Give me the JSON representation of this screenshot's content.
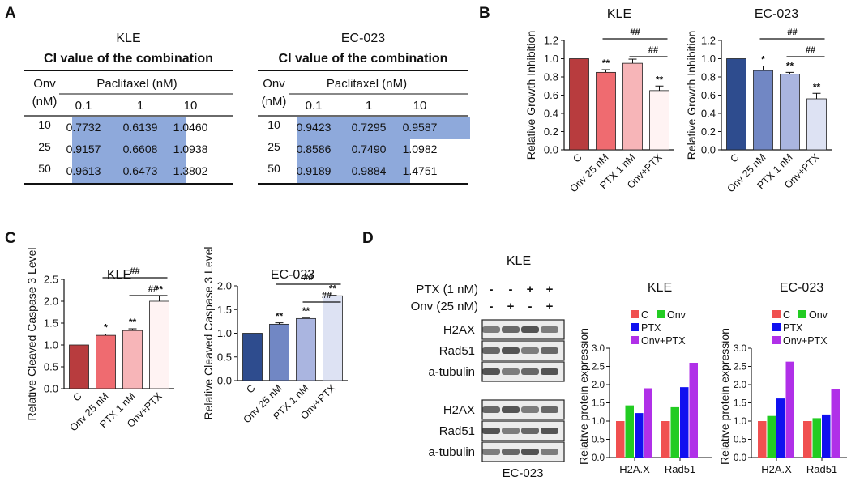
{
  "panel_labels": {
    "a": "A",
    "b": "B",
    "c": "C",
    "d": "D"
  },
  "panel_a": {
    "tables": [
      {
        "cell_line": "KLE",
        "caption": "CI value of the combination",
        "onv_header": [
          "Onv",
          "(nM)"
        ],
        "ptx_header": "Paclitaxel (nM)",
        "columns": [
          "0.1",
          "1",
          "10"
        ],
        "rows": [
          {
            "onv": "10",
            "values": [
              "0.7732",
              "0.6139",
              "1.0460"
            ]
          },
          {
            "onv": "25",
            "values": [
              "0.9157",
              "0.6608",
              "1.0938"
            ]
          },
          {
            "onv": "50",
            "values": [
              "0.9613",
              "0.6473",
              "1.3802"
            ]
          }
        ],
        "highlight_cells": [
          [
            0,
            0
          ],
          [
            0,
            1
          ],
          [
            1,
            0
          ],
          [
            1,
            1
          ],
          [
            2,
            0
          ],
          [
            2,
            1
          ]
        ]
      },
      {
        "cell_line": "EC-023",
        "caption": "CI value of the combination",
        "onv_header": [
          "Onv",
          "(nM)"
        ],
        "ptx_header": "Paclitaxel (nM)",
        "columns": [
          "0.1",
          "1",
          "10"
        ],
        "rows": [
          {
            "onv": "10",
            "values": [
              "0.9423",
              "0.7295",
              "0.9587"
            ]
          },
          {
            "onv": "25",
            "values": [
              "0.8586",
              "0.7490",
              "1.0982"
            ]
          },
          {
            "onv": "50",
            "values": [
              "0.9189",
              "0.9884",
              "1.4751"
            ]
          }
        ],
        "highlight_cells": [
          [
            0,
            0
          ],
          [
            0,
            1
          ],
          [
            0,
            2
          ],
          [
            1,
            0
          ],
          [
            1,
            1
          ],
          [
            2,
            0
          ],
          [
            2,
            1
          ]
        ]
      }
    ],
    "highlight_color": "#8ea9db"
  },
  "chart_data": [
    {
      "id": "b-kle",
      "type": "bar",
      "title": "KLE",
      "ylabel": "Relative Growth Inhibition",
      "xlabel": "",
      "categories": [
        "C",
        "Onv 25 nM",
        "PTX 1 nM",
        "Onv+PTX"
      ],
      "values": [
        1.0,
        0.85,
        0.95,
        0.65
      ],
      "errors": [
        0,
        0.03,
        0.045,
        0.05
      ],
      "sig": [
        "",
        "**",
        "",
        "**"
      ],
      "ylim": [
        0,
        1.2
      ],
      "ticks": [
        "0.0",
        "0.2",
        "0.4",
        "0.6",
        "0.8",
        "1.0",
        "1.2"
      ],
      "colors": [
        "#b83c3e",
        "#ef6b70",
        "#f7b5b8",
        "#fff3f3"
      ],
      "brackets": [
        {
          "from": 1,
          "to": 3,
          "label": "##"
        },
        {
          "from": 2,
          "to": 3,
          "label": "##"
        }
      ]
    },
    {
      "id": "b-ec",
      "type": "bar",
      "title": "EC-023",
      "ylabel": "Relative Growth Inhibition",
      "xlabel": "",
      "categories": [
        "C",
        "Onv 25 nM",
        "PTX 1 nM",
        "Onv+PTX"
      ],
      "values": [
        1.0,
        0.87,
        0.83,
        0.56
      ],
      "errors": [
        0,
        0.05,
        0.02,
        0.06
      ],
      "sig": [
        "",
        "*",
        "**",
        "**"
      ],
      "ylim": [
        0,
        1.2
      ],
      "ticks": [
        "0.0",
        "0.2",
        "0.4",
        "0.6",
        "0.8",
        "1.0",
        "1.2"
      ],
      "colors": [
        "#2e4c8e",
        "#7187c4",
        "#aab5e0",
        "#dde2f3"
      ],
      "brackets": [
        {
          "from": 1,
          "to": 3,
          "label": "##"
        },
        {
          "from": 2,
          "to": 3,
          "label": "##"
        }
      ]
    },
    {
      "id": "c-kle",
      "type": "bar",
      "title": "KLE",
      "ylabel": "Relative Cleaved Caspase 3 Level",
      "xlabel": "",
      "categories": [
        "C",
        "Onv 25 nM",
        "PTX 1 nM",
        "Onv+PTX"
      ],
      "values": [
        1.0,
        1.22,
        1.33,
        2.0
      ],
      "errors": [
        0,
        0.03,
        0.04,
        0.12
      ],
      "sig": [
        "",
        "*",
        "**",
        "**"
      ],
      "ylim": [
        0,
        2.5
      ],
      "ticks": [
        "0.0",
        "0.5",
        "1.0",
        "1.5",
        "2.0",
        "2.5"
      ],
      "colors": [
        "#b83c3e",
        "#ef6b70",
        "#f7b5b8",
        "#fff3f3"
      ],
      "brackets": [
        {
          "from": 1,
          "to": 3,
          "label": "##"
        },
        {
          "from": 2,
          "to": 3,
          "label": "##"
        }
      ]
    },
    {
      "id": "c-ec",
      "type": "bar",
      "title": "EC-023",
      "ylabel": "Relative Cleaved Caspase 3 Level",
      "xlabel": "",
      "categories": [
        "C",
        "Onv 25 nM",
        "PTX 1 nM",
        "Onv+PTX"
      ],
      "values": [
        1.0,
        1.19,
        1.31,
        1.79
      ],
      "errors": [
        0,
        0.03,
        0.02,
        0.01
      ],
      "sig": [
        "",
        "**",
        "**",
        "**"
      ],
      "ylim": [
        0,
        2.0
      ],
      "ticks": [
        "0.0",
        "0.5",
        "1.0",
        "1.5",
        "2.0"
      ],
      "colors": [
        "#2e4c8e",
        "#7187c4",
        "#aab5e0",
        "#dde2f3"
      ],
      "brackets": [
        {
          "from": 1,
          "to": 3,
          "label": "##"
        },
        {
          "from": 2,
          "to": 3,
          "label": "##"
        }
      ]
    },
    {
      "id": "d-kle",
      "type": "bar",
      "title": "KLE",
      "ylabel": "Relative protein expression",
      "xlabel": "",
      "groups": [
        "H2A.X",
        "Rad51"
      ],
      "series": [
        {
          "name": "C",
          "color": "#f05050",
          "values": [
            1.0,
            1.0
          ]
        },
        {
          "name": "Onv",
          "color": "#22cc22",
          "values": [
            1.43,
            1.38
          ]
        },
        {
          "name": "PTX",
          "color": "#1010f0",
          "values": [
            1.22,
            1.93
          ]
        },
        {
          "name": "Onv+PTX",
          "color": "#b030e8",
          "values": [
            1.9,
            2.6
          ]
        }
      ],
      "ylim": [
        0,
        3.0
      ],
      "ticks": [
        "0.0",
        "0.5",
        "1.0",
        "1.5",
        "2.0",
        "2.5",
        "3.0"
      ]
    },
    {
      "id": "d-ec",
      "type": "bar",
      "title": "EC-023",
      "ylabel": "Relative protein expression",
      "xlabel": "",
      "groups": [
        "H2A.X",
        "Rad51"
      ],
      "series": [
        {
          "name": "C",
          "color": "#f05050",
          "values": [
            1.0,
            1.0
          ]
        },
        {
          "name": "Onv",
          "color": "#22cc22",
          "values": [
            1.14,
            1.08
          ]
        },
        {
          "name": "PTX",
          "color": "#1010f0",
          "values": [
            1.62,
            1.18
          ]
        },
        {
          "name": "Onv+PTX",
          "color": "#b030e8",
          "values": [
            2.63,
            1.88
          ]
        }
      ],
      "ylim": [
        0,
        3.0
      ],
      "ticks": [
        "0.0",
        "0.5",
        "1.0",
        "1.5",
        "2.0",
        "2.5",
        "3.0"
      ]
    }
  ],
  "western": {
    "title": "KLE",
    "treatments": [
      {
        "label": "PTX (1 nM)",
        "signs": [
          "-",
          "-",
          "+",
          "+"
        ]
      },
      {
        "label": "Onv (25 nM)",
        "signs": [
          "-",
          "+",
          "-",
          "+"
        ]
      }
    ],
    "blot_groups": [
      {
        "cell_line": "KLE",
        "bands": [
          "H2AX",
          "Rad51",
          "a-tubulin"
        ]
      },
      {
        "cell_line": "EC-023",
        "bands": [
          "H2AX",
          "Rad51",
          "a-tubulin"
        ]
      }
    ],
    "bottom_label": "EC-023"
  }
}
